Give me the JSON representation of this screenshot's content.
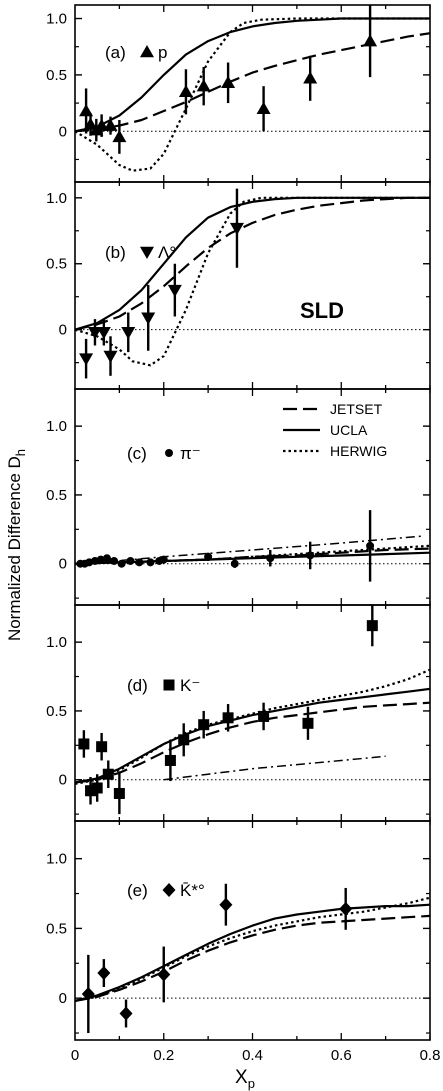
{
  "chart_data": {
    "type": "scatter",
    "ylabel": "Normalized Difference D",
    "ylabel_sub": "h",
    "xlabel": "X",
    "xlabel_sub": "p",
    "x_ticks": [
      "0",
      "0.2",
      "0.4",
      "0.6",
      "0.8"
    ],
    "y_ticks": [
      "0",
      "0.5",
      "1.0"
    ],
    "xlim": [
      0,
      0.8
    ],
    "experiment_label": "SLD",
    "legend": [
      {
        "name": "JETSET",
        "style": "dashed"
      },
      {
        "name": "UCLA",
        "style": "solid"
      },
      {
        "name": "HERWIG",
        "style": "dotted"
      }
    ],
    "panels": [
      {
        "tag": "(a)",
        "particle": "p",
        "marker": "triangle-up",
        "ylim": [
          -0.45,
          1.12
        ],
        "points": [
          {
            "x": 0.025,
            "y": 0.18,
            "err": 0.2
          },
          {
            "x": 0.035,
            "y": 0.06,
            "err": 0.1
          },
          {
            "x": 0.048,
            "y": 0.01,
            "err": 0.1
          },
          {
            "x": 0.06,
            "y": 0.05,
            "err": 0.1
          },
          {
            "x": 0.08,
            "y": 0.05,
            "err": 0.08
          },
          {
            "x": 0.1,
            "y": -0.05,
            "err": 0.15
          },
          {
            "x": 0.25,
            "y": 0.35,
            "err": 0.2
          },
          {
            "x": 0.29,
            "y": 0.4,
            "err": 0.17
          },
          {
            "x": 0.345,
            "y": 0.43,
            "err": 0.18
          },
          {
            "x": 0.425,
            "y": 0.2,
            "err": 0.2
          },
          {
            "x": 0.53,
            "y": 0.47,
            "err": 0.2
          },
          {
            "x": 0.665,
            "y": 0.8,
            "err": 0.32
          }
        ],
        "curves": {
          "JETSET": {
            "x": [
              0,
              0.05,
              0.1,
              0.15,
              0.2,
              0.25,
              0.3,
              0.35,
              0.4,
              0.45,
              0.5,
              0.55,
              0.6,
              0.65,
              0.7,
              0.75,
              0.8
            ],
            "y": [
              0,
              0.02,
              0.05,
              0.1,
              0.18,
              0.26,
              0.35,
              0.44,
              0.52,
              0.58,
              0.63,
              0.68,
              0.72,
              0.76,
              0.8,
              0.84,
              0.87
            ]
          },
          "UCLA": {
            "x": [
              0,
              0.05,
              0.1,
              0.15,
              0.2,
              0.25,
              0.3,
              0.35,
              0.4,
              0.45,
              0.5,
              0.55,
              0.6,
              0.65,
              0.7,
              0.75,
              0.8
            ],
            "y": [
              0,
              0.04,
              0.14,
              0.3,
              0.5,
              0.68,
              0.8,
              0.88,
              0.93,
              0.96,
              0.98,
              0.99,
              1.0,
              1.0,
              1.0,
              1.0,
              1.0
            ]
          },
          "HERWIG": {
            "x": [
              0,
              0.05,
              0.1,
              0.13,
              0.17,
              0.2,
              0.25,
              0.3,
              0.35,
              0.38,
              0.42,
              0.5,
              0.6,
              0.7,
              0.8
            ],
            "y": [
              0,
              -0.12,
              -0.3,
              -0.35,
              -0.33,
              -0.2,
              0.2,
              0.62,
              0.88,
              0.96,
              0.99,
              1.0,
              1.0,
              1.0,
              1.0
            ]
          }
        }
      },
      {
        "tag": "(b)",
        "particle": "Λ°",
        "marker": "triangle-down",
        "ylim": [
          -0.45,
          1.12
        ],
        "points": [
          {
            "x": 0.025,
            "y": -0.22,
            "err": 0.15
          },
          {
            "x": 0.045,
            "y": -0.02,
            "err": 0.1
          },
          {
            "x": 0.065,
            "y": -0.02,
            "err": 0.1
          },
          {
            "x": 0.08,
            "y": -0.2,
            "err": 0.15
          },
          {
            "x": 0.12,
            "y": -0.02,
            "err": 0.15
          },
          {
            "x": 0.165,
            "y": 0.09,
            "err": 0.25
          },
          {
            "x": 0.225,
            "y": 0.3,
            "err": 0.2
          },
          {
            "x": 0.365,
            "y": 0.77,
            "err": 0.3
          }
        ],
        "curves": {
          "JETSET": {
            "x": [
              0,
              0.05,
              0.1,
              0.15,
              0.2,
              0.25,
              0.3,
              0.35,
              0.4,
              0.45,
              0.5,
              0.55,
              0.6,
              0.65,
              0.7,
              0.75,
              0.8
            ],
            "y": [
              0,
              0.04,
              0.1,
              0.2,
              0.33,
              0.48,
              0.62,
              0.73,
              0.81,
              0.87,
              0.91,
              0.94,
              0.96,
              0.98,
              0.99,
              1.0,
              1.0
            ]
          },
          "UCLA": {
            "x": [
              0,
              0.05,
              0.1,
              0.15,
              0.2,
              0.25,
              0.3,
              0.35,
              0.4,
              0.45,
              0.5,
              0.55,
              0.6,
              0.65,
              0.7,
              0.75,
              0.8
            ],
            "y": [
              0,
              0.05,
              0.15,
              0.3,
              0.5,
              0.7,
              0.85,
              0.93,
              0.97,
              0.99,
              1.0,
              1.0,
              1.0,
              1.0,
              1.0,
              1.0,
              1.0
            ]
          },
          "HERWIG": {
            "x": [
              0,
              0.05,
              0.1,
              0.13,
              0.17,
              0.2,
              0.25,
              0.3,
              0.35,
              0.38,
              0.42,
              0.5,
              0.6,
              0.7,
              0.8
            ],
            "y": [
              0,
              -0.05,
              -0.15,
              -0.24,
              -0.27,
              -0.2,
              0.15,
              0.58,
              0.88,
              0.97,
              1.0,
              1.0,
              1.0,
              1.0,
              1.0
            ]
          }
        }
      },
      {
        "tag": "(c)",
        "particle": "π⁻",
        "marker": "circle",
        "ylim": [
          -0.3,
          1.27
        ],
        "points": [
          {
            "x": 0.012,
            "y": 0.0,
            "err": 0.01
          },
          {
            "x": 0.022,
            "y": 0.0,
            "err": 0.01
          },
          {
            "x": 0.032,
            "y": 0.01,
            "err": 0.01
          },
          {
            "x": 0.045,
            "y": 0.02,
            "err": 0.01
          },
          {
            "x": 0.058,
            "y": 0.03,
            "err": 0.02
          },
          {
            "x": 0.072,
            "y": 0.04,
            "err": 0.02
          },
          {
            "x": 0.088,
            "y": 0.02,
            "err": 0.02
          },
          {
            "x": 0.105,
            "y": 0.0,
            "err": 0.02
          },
          {
            "x": 0.125,
            "y": 0.02,
            "err": 0.02
          },
          {
            "x": 0.145,
            "y": 0.01,
            "err": 0.02
          },
          {
            "x": 0.17,
            "y": 0.01,
            "err": 0.02
          },
          {
            "x": 0.19,
            "y": 0.02,
            "err": 0.02
          },
          {
            "x": 0.2,
            "y": 0.03,
            "err": 0.02
          },
          {
            "x": 0.3,
            "y": 0.05,
            "err": 0.03
          },
          {
            "x": 0.36,
            "y": 0.0,
            "err": 0.03
          },
          {
            "x": 0.44,
            "y": 0.04,
            "err": 0.06
          },
          {
            "x": 0.53,
            "y": 0.06,
            "err": 0.1
          },
          {
            "x": 0.665,
            "y": 0.13,
            "err": 0.26
          }
        ],
        "curves": {
          "JETSET": {
            "x": [
              0,
              0.1,
              0.2,
              0.3,
              0.4,
              0.5,
              0.6,
              0.7,
              0.8
            ],
            "y": [
              0,
              0.01,
              0.02,
              0.03,
              0.05,
              0.06,
              0.08,
              0.1,
              0.11
            ]
          },
          "UCLA": {
            "x": [
              0,
              0.1,
              0.2,
              0.3,
              0.4,
              0.5,
              0.6,
              0.7,
              0.8
            ],
            "y": [
              0,
              0.01,
              0.02,
              0.03,
              0.04,
              0.05,
              0.06,
              0.07,
              0.08
            ]
          },
          "HERWIG": {
            "x": [
              0,
              0.1,
              0.2,
              0.3,
              0.4,
              0.5,
              0.6,
              0.7,
              0.8
            ],
            "y": [
              0,
              0.01,
              0.02,
              0.03,
              0.05,
              0.07,
              0.09,
              0.11,
              0.13
            ]
          },
          "dashdot": {
            "x": [
              0.02,
              0.2,
              0.4,
              0.6,
              0.78
            ],
            "y": [
              0.0,
              0.05,
              0.1,
              0.15,
              0.2
            ]
          }
        }
      },
      {
        "tag": "(d)",
        "particle": "K⁻",
        "marker": "square",
        "ylim": [
          -0.3,
          1.27
        ],
        "points": [
          {
            "x": 0.02,
            "y": 0.26,
            "err": 0.1
          },
          {
            "x": 0.035,
            "y": -0.08,
            "err": 0.1
          },
          {
            "x": 0.05,
            "y": -0.06,
            "err": 0.1
          },
          {
            "x": 0.06,
            "y": 0.24,
            "err": 0.1
          },
          {
            "x": 0.075,
            "y": 0.04,
            "err": 0.1
          },
          {
            "x": 0.1,
            "y": -0.1,
            "err": 0.15
          },
          {
            "x": 0.215,
            "y": 0.14,
            "err": 0.15
          },
          {
            "x": 0.245,
            "y": 0.29,
            "err": 0.12
          },
          {
            "x": 0.29,
            "y": 0.4,
            "err": 0.1
          },
          {
            "x": 0.345,
            "y": 0.45,
            "err": 0.1
          },
          {
            "x": 0.425,
            "y": 0.46,
            "err": 0.1
          },
          {
            "x": 0.525,
            "y": 0.41,
            "err": 0.12
          },
          {
            "x": 0.67,
            "y": 1.12,
            "err": 0.15
          }
        ],
        "curves": {
          "JETSET": {
            "x": [
              0,
              0.05,
              0.1,
              0.15,
              0.2,
              0.25,
              0.3,
              0.35,
              0.4,
              0.45,
              0.5,
              0.55,
              0.6,
              0.65,
              0.7,
              0.75,
              0.8
            ],
            "y": [
              -0.02,
              0.0,
              0.05,
              0.12,
              0.2,
              0.27,
              0.33,
              0.38,
              0.42,
              0.45,
              0.47,
              0.49,
              0.51,
              0.53,
              0.54,
              0.55,
              0.56
            ]
          },
          "UCLA": {
            "x": [
              0,
              0.05,
              0.1,
              0.15,
              0.2,
              0.25,
              0.3,
              0.35,
              0.4,
              0.45,
              0.5,
              0.55,
              0.6,
              0.65,
              0.7,
              0.75,
              0.8
            ],
            "y": [
              -0.02,
              0.01,
              0.08,
              0.17,
              0.26,
              0.33,
              0.39,
              0.43,
              0.47,
              0.5,
              0.53,
              0.56,
              0.58,
              0.6,
              0.62,
              0.64,
              0.66
            ]
          },
          "HERWIG": {
            "x": [
              0,
              0.05,
              0.1,
              0.15,
              0.2,
              0.25,
              0.3,
              0.35,
              0.4,
              0.45,
              0.5,
              0.55,
              0.6,
              0.65,
              0.7,
              0.75,
              0.8
            ],
            "y": [
              -0.03,
              0.0,
              0.07,
              0.16,
              0.26,
              0.34,
              0.4,
              0.44,
              0.48,
              0.52,
              0.55,
              0.58,
              0.61,
              0.64,
              0.68,
              0.73,
              0.8
            ]
          },
          "dashdot": {
            "x": [
              0.2,
              0.3,
              0.4,
              0.5,
              0.6,
              0.7
            ],
            "y": [
              0.0,
              0.04,
              0.08,
              0.11,
              0.14,
              0.17
            ]
          }
        }
      },
      {
        "tag": "(e)",
        "particle": "K̄*°",
        "marker": "diamond",
        "ylim": [
          -0.3,
          1.27
        ],
        "points": [
          {
            "x": 0.03,
            "y": 0.03,
            "err": 0.28
          },
          {
            "x": 0.065,
            "y": 0.18,
            "err": 0.1
          },
          {
            "x": 0.115,
            "y": -0.11,
            "err": 0.1
          },
          {
            "x": 0.2,
            "y": 0.17,
            "err": 0.2
          },
          {
            "x": 0.34,
            "y": 0.67,
            "err": 0.15
          },
          {
            "x": 0.61,
            "y": 0.64,
            "err": 0.15
          }
        ],
        "curves": {
          "JETSET": {
            "x": [
              0,
              0.05,
              0.1,
              0.15,
              0.2,
              0.25,
              0.3,
              0.35,
              0.4,
              0.45,
              0.5,
              0.55,
              0.6,
              0.65,
              0.7,
              0.75,
              0.8
            ],
            "y": [
              -0.02,
              0.01,
              0.06,
              0.12,
              0.19,
              0.27,
              0.34,
              0.4,
              0.45,
              0.49,
              0.52,
              0.54,
              0.55,
              0.56,
              0.57,
              0.58,
              0.59
            ]
          },
          "UCLA": {
            "x": [
              0,
              0.05,
              0.1,
              0.15,
              0.2,
              0.25,
              0.3,
              0.35,
              0.4,
              0.45,
              0.5,
              0.55,
              0.6,
              0.65,
              0.7,
              0.75,
              0.8
            ],
            "y": [
              -0.02,
              0.02,
              0.08,
              0.15,
              0.23,
              0.31,
              0.39,
              0.46,
              0.52,
              0.57,
              0.6,
              0.62,
              0.64,
              0.65,
              0.66,
              0.66,
              0.67
            ]
          },
          "HERWIG": {
            "x": [
              0,
              0.05,
              0.1,
              0.15,
              0.2,
              0.25,
              0.3,
              0.35,
              0.4,
              0.45,
              0.5,
              0.55,
              0.6,
              0.65,
              0.7,
              0.75,
              0.8
            ],
            "y": [
              -0.02,
              0.01,
              0.07,
              0.14,
              0.22,
              0.3,
              0.37,
              0.43,
              0.48,
              0.52,
              0.55,
              0.58,
              0.6,
              0.62,
              0.65,
              0.68,
              0.72
            ]
          }
        }
      }
    ]
  }
}
